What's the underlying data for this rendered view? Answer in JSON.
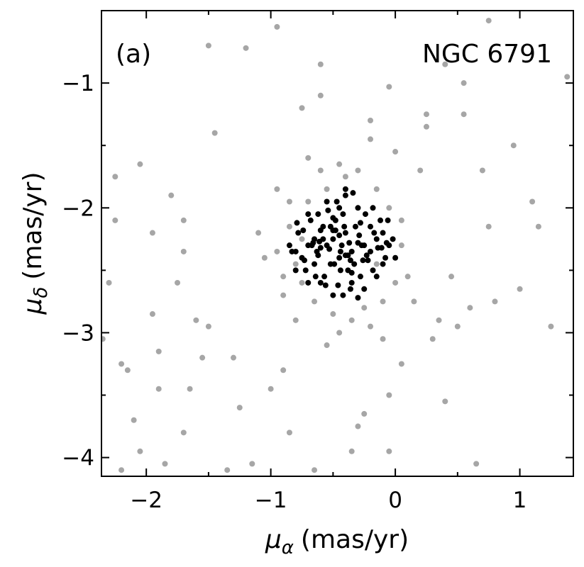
{
  "chart_data": {
    "type": "scatter",
    "annotations": [
      "(a)",
      "NGC 6791"
    ],
    "xlabel": {
      "symbol": "μ",
      "sub": "α",
      "unit": "(mas/yr)"
    },
    "ylabel": {
      "symbol": "μ",
      "sub": "δ",
      "unit": "(mas/yr)"
    },
    "xlim": [
      -2.36,
      1.43
    ],
    "ylim": [
      -4.15,
      -0.42
    ],
    "xticks": [
      {
        "value": -2,
        "label": "−2"
      },
      {
        "value": -1,
        "label": "−1"
      },
      0,
      1
    ],
    "yticks": [
      {
        "value": -1,
        "label": "−1"
      },
      {
        "value": -2,
        "label": "−2"
      },
      {
        "value": -3,
        "label": "−3"
      },
      {
        "value": -4,
        "label": "−4"
      }
    ],
    "xminorticks": [
      -1.5,
      -0.5,
      0.5
    ],
    "yminorticks": [
      -1.5,
      -2.5,
      -3.5
    ],
    "series": [
      {
        "color": "#a6a6a6",
        "x": [
          -2.3,
          -2.25,
          -2.25,
          -2.2,
          -2.15,
          -2.1,
          -2.2,
          -2.05,
          -2.05,
          -1.95,
          -1.95,
          -1.9,
          -1.9,
          -1.85,
          -1.8,
          -1.75,
          -1.7,
          -1.7,
          -1.65,
          -1.6,
          -1.55,
          -1.5,
          -1.45,
          -1.5,
          -1.35,
          -1.3,
          -1.25,
          -1.2,
          -1.15,
          -1.1,
          -1.05,
          -1.0,
          -0.95,
          -0.95,
          -0.9,
          -0.85,
          -0.75,
          -0.7,
          -0.65,
          -0.6,
          -0.6,
          -0.55,
          -0.45,
          -0.4,
          -0.35,
          -0.3,
          -0.25,
          -0.2,
          -0.2,
          -0.1,
          -0.05,
          -0.05,
          0.0,
          0.05,
          -0.05,
          0.15,
          0.2,
          0.25,
          0.25,
          0.3,
          0.35,
          0.4,
          0.45,
          0.5,
          0.55,
          0.55,
          0.6,
          0.65,
          0.7,
          0.75,
          0.8,
          0.95,
          1.0,
          1.1,
          1.15,
          1.25,
          1.38,
          0.4,
          0.75,
          -2.35,
          -1.7,
          -0.8,
          -0.75,
          -0.9,
          -0.95,
          -0.85,
          -0.7,
          -0.6,
          -0.3,
          -0.15,
          -0.05,
          0.05,
          0.1,
          -0.1,
          -0.25,
          -0.5,
          -0.65,
          -0.8,
          -0.85,
          -0.55,
          -0.15,
          0.0,
          -0.35,
          -0.75,
          0.05,
          -0.45,
          -0.2,
          -0.9
        ],
        "values": [
          -2.6,
          -1.75,
          -2.1,
          -3.25,
          -3.3,
          -3.7,
          -4.1,
          -3.95,
          -1.65,
          -2.2,
          -2.85,
          -3.15,
          -3.45,
          -4.05,
          -1.9,
          -2.6,
          -2.35,
          -2.1,
          -3.45,
          -2.9,
          -3.2,
          -2.95,
          -1.4,
          -0.7,
          -4.1,
          -3.2,
          -3.6,
          -0.72,
          -4.05,
          -2.2,
          -2.4,
          -3.45,
          -0.55,
          -1.85,
          -3.3,
          -3.8,
          -1.2,
          -1.6,
          -4.1,
          -1.1,
          -0.85,
          -3.1,
          -3.0,
          -1.75,
          -3.95,
          -3.75,
          -3.65,
          -1.45,
          -1.3,
          -3.05,
          -3.5,
          -3.95,
          -1.55,
          -3.25,
          -1.03,
          -2.75,
          -1.7,
          -1.35,
          -1.25,
          -3.05,
          -2.9,
          -3.55,
          -2.55,
          -2.95,
          -1.25,
          -1.0,
          -2.8,
          -4.05,
          -1.7,
          -2.15,
          -2.75,
          -1.5,
          -2.65,
          -1.95,
          -2.15,
          -2.95,
          -0.95,
          -0.85,
          -0.5,
          -3.05,
          -3.8,
          -2.9,
          -2.6,
          -2.55,
          -2.35,
          -2.15,
          -1.95,
          -1.7,
          -1.7,
          -1.85,
          -2.0,
          -2.3,
          -2.55,
          -2.75,
          -2.8,
          -2.85,
          -2.75,
          -2.45,
          -1.95,
          -1.85,
          -2.45,
          -2.6,
          -2.9,
          -2.25,
          -2.1,
          -1.65,
          -2.95,
          -2.7
        ]
      },
      {
        "color": "#000000",
        "x": [
          -0.43,
          -0.5,
          -0.35,
          -0.45,
          -0.4,
          -0.55,
          -0.3,
          -0.6,
          -0.25,
          -0.48,
          -0.38,
          -0.52,
          -0.33,
          -0.65,
          -0.2,
          -0.7,
          -0.15,
          -0.75,
          -0.1,
          -0.8,
          -0.05,
          -0.62,
          -0.28,
          -0.57,
          -0.42,
          -0.47,
          -0.36,
          -0.68,
          -0.18,
          -0.72,
          -0.12,
          -0.78,
          -0.08,
          -0.83,
          -0.02,
          -0.6,
          -0.3,
          -0.5,
          -0.4,
          -0.55,
          -0.25,
          -0.65,
          -0.2,
          -0.45,
          -0.35,
          -0.7,
          -0.15,
          -0.58,
          -0.32,
          -0.44,
          -0.52,
          -0.38,
          -0.62,
          -0.22,
          -0.48,
          -0.28,
          -0.66,
          -0.14,
          -0.74,
          -0.1,
          -0.42,
          -0.56,
          -0.34,
          -0.46,
          -0.4,
          -0.54,
          -0.3,
          -0.6,
          -0.26,
          -0.5,
          -0.36,
          -0.7,
          -0.18,
          -0.64,
          -0.24,
          -0.8,
          -0.06,
          -0.85,
          0.0,
          -0.44,
          -0.41,
          -0.49,
          -0.37,
          -0.53,
          -0.29,
          -0.61,
          -0.23,
          -0.67,
          -0.17,
          -0.73,
          -0.11,
          -0.79,
          -0.07,
          -0.5,
          -0.35,
          -0.45,
          -0.4,
          -0.58,
          -0.27,
          -0.63
        ],
        "values": [
          -2.3,
          -2.25,
          -2.35,
          -2.4,
          -2.2,
          -2.3,
          -2.28,
          -2.32,
          -2.3,
          -2.1,
          -2.5,
          -2.15,
          -2.45,
          -2.25,
          -2.35,
          -2.3,
          -2.25,
          -2.4,
          -2.2,
          -2.35,
          -2.3,
          -2.05,
          -2.55,
          -2.55,
          -2.05,
          -1.95,
          -2.65,
          -2.1,
          -2.5,
          -2.5,
          -2.1,
          -2.2,
          -2.4,
          -2.35,
          -2.25,
          -2.6,
          -2.0,
          -2.7,
          -1.9,
          -1.95,
          -2.65,
          -2.45,
          -2.15,
          -2.0,
          -2.6,
          -2.05,
          -2.55,
          -2.15,
          -2.15,
          -2.5,
          -2.45,
          -2.38,
          -2.38,
          -2.42,
          -2.18,
          -2.12,
          -2.28,
          -2.32,
          -2.18,
          -2.45,
          -2.7,
          -2.62,
          -1.88,
          -2.62,
          -1.85,
          -2.02,
          -2.72,
          -2.18,
          -2.42,
          -2.18,
          -2.42,
          -2.6,
          -2.0,
          -2.55,
          -2.05,
          -2.5,
          -2.1,
          -2.3,
          -2.4,
          -2.35,
          -2.15,
          -2.45,
          -2.28,
          -2.33,
          -2.22,
          -2.27,
          -2.38,
          -2.3,
          -2.2,
          -2.42,
          -2.32,
          -2.12,
          -2.28,
          -2.08,
          -2.52,
          -2.22,
          -2.38,
          -2.25,
          -2.3,
          -2.35
        ]
      }
    ]
  }
}
